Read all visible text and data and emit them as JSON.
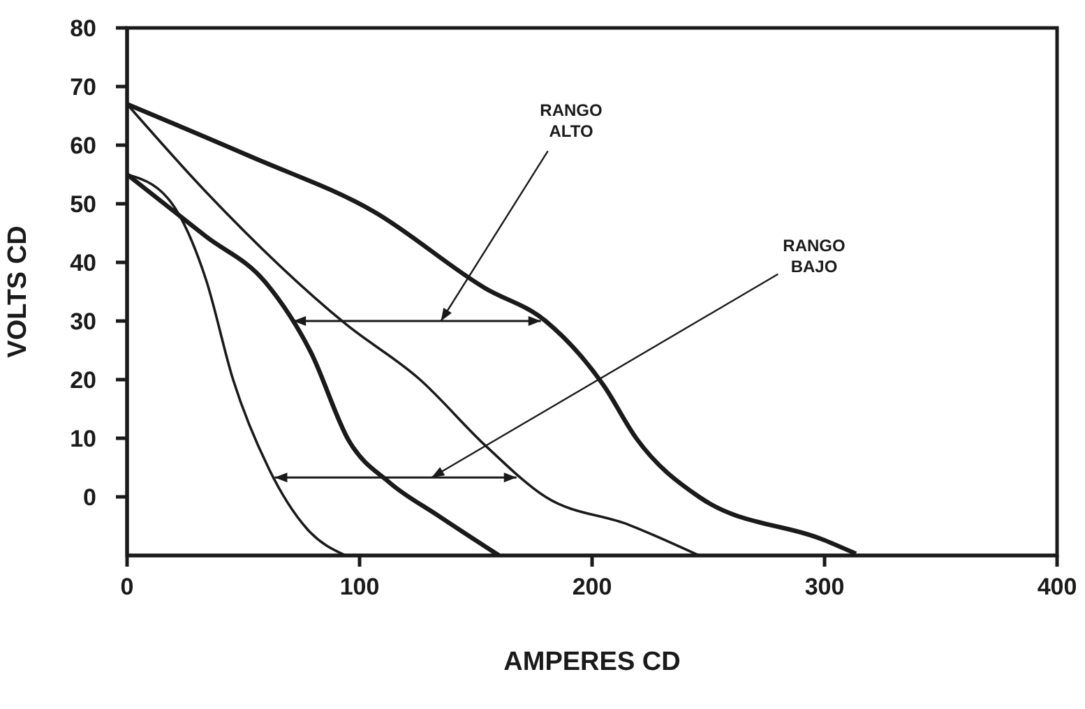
{
  "chart_data": {
    "type": "line",
    "xlabel": "AMPERES CD",
    "ylabel": "VOLTS CD",
    "xlim": [
      0,
      400
    ],
    "xticks": [
      0,
      100,
      200,
      300,
      400
    ],
    "ylim": [
      -10,
      80
    ],
    "yticks": [
      0,
      10,
      20,
      30,
      40,
      50,
      60,
      70,
      80
    ],
    "grid": false,
    "marker": "none",
    "line_style": "solid",
    "series": [
      {
        "color": "#1a1a1a",
        "x": [
          0,
          53.5,
          106,
          154,
          180,
          205,
          219,
          246,
          300,
          313.5
        ],
        "values": [
          67,
          58,
          48.7,
          35.6,
          30,
          19,
          10,
          0,
          -7.4,
          -9.7
        ]
      },
      {
        "color": "#1a1a1a",
        "x": [
          0,
          34,
          94,
          126,
          154,
          180,
          216,
          246
        ],
        "values": [
          67,
          52,
          29.5,
          20,
          8.8,
          0,
          -4.8,
          -10
        ]
      },
      {
        "color": "#1a1a1a",
        "x": [
          0,
          34,
          59.5,
          79,
          95.5,
          113,
          133,
          160
        ],
        "values": [
          55,
          44.4,
          36.6,
          24.7,
          9.5,
          2.4,
          -3,
          -10
        ]
      },
      {
        "color": "#1a1a1a",
        "x": [
          0,
          17.4,
          34,
          45.6,
          61,
          77.5,
          94
        ],
        "values": [
          55,
          51,
          37,
          20,
          4.8,
          -5.5,
          -10
        ]
      }
    ],
    "annotations": [
      "RANGO ALTO",
      "RANGO BAJO"
    ]
  }
}
